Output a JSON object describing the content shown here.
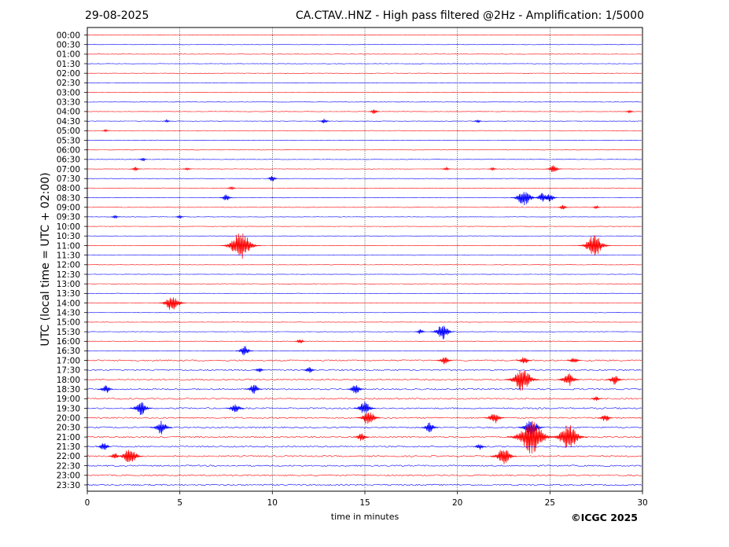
{
  "header": {
    "date": "29-08-2025",
    "title": "CA.CTAV..HNZ - High pass filtered @2Hz - Amplification: 1/5000"
  },
  "footer": {
    "copyright": "©ICGC 2025"
  },
  "colors": {
    "trace_red": "#ff0000",
    "trace_blue": "#0000ff",
    "grid": "#000000"
  },
  "chart_data": {
    "type": "line",
    "description": "Helicorder: 48 half-hour rows of seismic trace, alternating red/blue",
    "title": "CA.CTAV..HNZ - High pass filtered @2Hz - Amplification: 1/5000",
    "xlabel": "time in minutes",
    "ylabel": "UTC (local time = UTC + 02:00)",
    "xlim": [
      0,
      30
    ],
    "xticks": [
      "0",
      "5",
      "10",
      "15",
      "20",
      "25",
      "30"
    ],
    "vertical_grid_at": [
      5,
      10,
      15,
      20,
      25
    ],
    "row_labels": [
      "00:00",
      "00:30",
      "01:00",
      "01:30",
      "02:00",
      "02:30",
      "03:00",
      "03:30",
      "04:00",
      "04:30",
      "05:00",
      "05:30",
      "06:00",
      "06:30",
      "07:00",
      "07:30",
      "08:00",
      "08:30",
      "09:00",
      "09:30",
      "10:00",
      "10:30",
      "11:00",
      "11:30",
      "12:00",
      "12:30",
      "13:00",
      "13:30",
      "14:00",
      "14:30",
      "15:00",
      "15:30",
      "16:00",
      "16:30",
      "17:00",
      "17:30",
      "18:00",
      "18:30",
      "19:00",
      "19:30",
      "20:00",
      "20:30",
      "21:00",
      "21:30",
      "22:00",
      "22:30",
      "23:00",
      "23:30"
    ],
    "series": [
      {
        "row": "00:00",
        "color": "red",
        "events": []
      },
      {
        "row": "00:30",
        "color": "blue",
        "events": []
      },
      {
        "row": "01:00",
        "color": "red",
        "events": []
      },
      {
        "row": "01:30",
        "color": "blue",
        "events": []
      },
      {
        "row": "02:00",
        "color": "red",
        "events": []
      },
      {
        "row": "02:30",
        "color": "blue",
        "events": []
      },
      {
        "row": "03:00",
        "color": "red",
        "events": []
      },
      {
        "row": "03:30",
        "color": "blue",
        "events": []
      },
      {
        "row": "04:00",
        "color": "red",
        "events": [
          {
            "t": 15.5,
            "amp": 0.3
          },
          {
            "t": 29.3,
            "amp": 0.2
          }
        ]
      },
      {
        "row": "04:30",
        "color": "blue",
        "events": [
          {
            "t": 12.8,
            "amp": 0.3
          },
          {
            "t": 4.3,
            "amp": 0.15
          },
          {
            "t": 21.1,
            "amp": 0.2
          }
        ]
      },
      {
        "row": "05:00",
        "color": "red",
        "events": [
          {
            "t": 1.0,
            "amp": 0.15
          }
        ]
      },
      {
        "row": "05:30",
        "color": "blue",
        "events": []
      },
      {
        "row": "06:00",
        "color": "red",
        "events": []
      },
      {
        "row": "06:30",
        "color": "blue",
        "events": [
          {
            "t": 3.0,
            "amp": 0.2
          }
        ]
      },
      {
        "row": "07:00",
        "color": "red",
        "events": [
          {
            "t": 2.6,
            "amp": 0.25
          },
          {
            "t": 5.4,
            "amp": 0.2
          },
          {
            "t": 19.4,
            "amp": 0.2
          },
          {
            "t": 21.9,
            "amp": 0.2
          },
          {
            "t": 25.2,
            "amp": 0.5
          }
        ]
      },
      {
        "row": "07:30",
        "color": "blue",
        "events": [
          {
            "t": 10.0,
            "amp": 0.35
          }
        ]
      },
      {
        "row": "08:00",
        "color": "red",
        "events": [
          {
            "t": 7.8,
            "amp": 0.2
          }
        ]
      },
      {
        "row": "08:30",
        "color": "blue",
        "events": [
          {
            "t": 23.6,
            "amp": 1.0
          },
          {
            "t": 24.6,
            "amp": 0.6
          },
          {
            "t": 25.0,
            "amp": 0.5
          },
          {
            "t": 7.5,
            "amp": 0.4
          }
        ]
      },
      {
        "row": "09:00",
        "color": "red",
        "events": [
          {
            "t": 25.7,
            "amp": 0.3
          },
          {
            "t": 27.5,
            "amp": 0.2
          }
        ]
      },
      {
        "row": "09:30",
        "color": "blue",
        "events": [
          {
            "t": 1.5,
            "amp": 0.2
          },
          {
            "t": 5.0,
            "amp": 0.2
          }
        ]
      },
      {
        "row": "10:00",
        "color": "red",
        "events": []
      },
      {
        "row": "10:30",
        "color": "blue",
        "events": []
      },
      {
        "row": "11:00",
        "color": "red",
        "events": [
          {
            "t": 8.3,
            "amp": 1.6
          },
          {
            "t": 27.4,
            "amp": 1.3
          }
        ]
      },
      {
        "row": "11:30",
        "color": "blue",
        "events": []
      },
      {
        "row": "12:00",
        "color": "red",
        "events": []
      },
      {
        "row": "12:30",
        "color": "blue",
        "events": []
      },
      {
        "row": "13:00",
        "color": "red",
        "events": []
      },
      {
        "row": "13:30",
        "color": "blue",
        "events": []
      },
      {
        "row": "14:00",
        "color": "red",
        "events": [
          {
            "t": 4.6,
            "amp": 1.0
          }
        ]
      },
      {
        "row": "14:30",
        "color": "blue",
        "events": []
      },
      {
        "row": "15:00",
        "color": "red",
        "events": []
      },
      {
        "row": "15:30",
        "color": "blue",
        "events": [
          {
            "t": 19.2,
            "amp": 0.9
          },
          {
            "t": 18.0,
            "amp": 0.3
          }
        ]
      },
      {
        "row": "16:00",
        "color": "red",
        "events": [
          {
            "t": 11.5,
            "amp": 0.3
          }
        ]
      },
      {
        "row": "16:30",
        "color": "blue",
        "events": [
          {
            "t": 8.5,
            "amp": 0.6
          }
        ]
      },
      {
        "row": "17:00",
        "color": "red",
        "events": [
          {
            "t": 19.3,
            "amp": 0.5
          },
          {
            "t": 23.6,
            "amp": 0.5
          },
          {
            "t": 26.3,
            "amp": 0.4
          }
        ]
      },
      {
        "row": "17:30",
        "color": "blue",
        "events": [
          {
            "t": 12.0,
            "amp": 0.4
          },
          {
            "t": 9.3,
            "amp": 0.3
          }
        ]
      },
      {
        "row": "18:00",
        "color": "red",
        "events": [
          {
            "t": 23.5,
            "amp": 1.4
          },
          {
            "t": 26.0,
            "amp": 0.8
          },
          {
            "t": 28.5,
            "amp": 0.6
          }
        ]
      },
      {
        "row": "18:30",
        "color": "blue",
        "events": [
          {
            "t": 9.0,
            "amp": 0.6
          },
          {
            "t": 14.5,
            "amp": 0.6
          },
          {
            "t": 1.0,
            "amp": 0.5
          }
        ]
      },
      {
        "row": "19:00",
        "color": "red",
        "events": [
          {
            "t": 27.5,
            "amp": 0.3
          }
        ]
      },
      {
        "row": "19:30",
        "color": "blue",
        "events": [
          {
            "t": 2.9,
            "amp": 0.8
          },
          {
            "t": 15.0,
            "amp": 0.8
          },
          {
            "t": 8.0,
            "amp": 0.6
          }
        ]
      },
      {
        "row": "20:00",
        "color": "red",
        "events": [
          {
            "t": 15.2,
            "amp": 0.9
          },
          {
            "t": 22.0,
            "amp": 0.7
          },
          {
            "t": 28.0,
            "amp": 0.5
          }
        ]
      },
      {
        "row": "20:30",
        "color": "blue",
        "events": [
          {
            "t": 4.0,
            "amp": 0.8
          },
          {
            "t": 24.0,
            "amp": 1.0
          },
          {
            "t": 18.5,
            "amp": 0.6
          }
        ]
      },
      {
        "row": "21:00",
        "color": "red",
        "events": [
          {
            "t": 24.0,
            "amp": 2.0
          },
          {
            "t": 26.0,
            "amp": 1.5
          },
          {
            "t": 14.8,
            "amp": 0.5
          }
        ]
      },
      {
        "row": "21:30",
        "color": "blue",
        "events": [
          {
            "t": 0.9,
            "amp": 0.5
          },
          {
            "t": 21.2,
            "amp": 0.4
          }
        ]
      },
      {
        "row": "22:00",
        "color": "red",
        "events": [
          {
            "t": 1.5,
            "amp": 0.4
          },
          {
            "t": 2.3,
            "amp": 1.0
          },
          {
            "t": 22.5,
            "amp": 1.0
          }
        ]
      },
      {
        "row": "22:30",
        "color": "blue",
        "events": []
      },
      {
        "row": "23:00",
        "color": "red",
        "events": []
      },
      {
        "row": "23:30",
        "color": "blue",
        "events": []
      }
    ]
  }
}
